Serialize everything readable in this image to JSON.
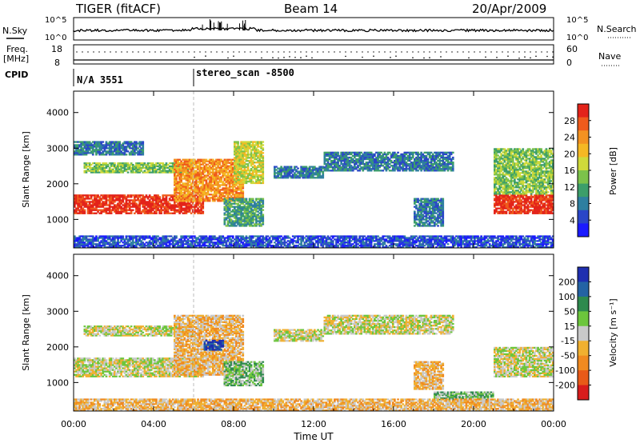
{
  "header": {
    "title": "TIGER (fitACF)",
    "beam": "Beam 14",
    "date": "20/Apr/2009"
  },
  "top_panels": {
    "nsky_label": "N.Sky",
    "nsearch_label": "N.Search",
    "noise_ticks": [
      "10^5",
      "10^0"
    ],
    "noise_ticks_right": [
      "10^5",
      "10^0"
    ],
    "freq_label": "Freq.",
    "freq_unit": "[MHz]",
    "freq_ticks": [
      "18",
      "8"
    ],
    "nave_label": "Nave",
    "nave_ticks": [
      "60",
      "0"
    ],
    "cpid_label": "CPID",
    "cpid_values": [
      {
        "label": "N/A 3551",
        "start": "00:00"
      },
      {
        "label": "stereo_scan -8500",
        "start": "06:00"
      }
    ]
  },
  "chart_data": [
    {
      "type": "heatmap",
      "name": "power-panel",
      "xlabel": "",
      "ylabel": "Slant Range [km]",
      "x_ticks": [
        "00:00",
        "04:00",
        "08:00",
        "12:00",
        "16:00",
        "20:00",
        "00:00"
      ],
      "y_ticks": [
        1000,
        2000,
        3000,
        4000
      ],
      "ylim": [
        200,
        4600
      ],
      "xlim_hours": [
        0,
        24
      ],
      "colorbar": {
        "label": "Power [dB]",
        "ticks": [
          4,
          8,
          12,
          16,
          20,
          24,
          28
        ],
        "colors": [
          "#1a1aff",
          "#2a46c8",
          "#2e7fa0",
          "#3c9e6a",
          "#7cc24a",
          "#cfd93a",
          "#f5b823",
          "#f39221",
          "#ef5b1c",
          "#e3231a"
        ]
      },
      "regions": [
        {
          "t0": 0.0,
          "t1": 6.5,
          "r0": 1150,
          "r1": 1700,
          "level": 9
        },
        {
          "t0": 0.5,
          "t1": 6.0,
          "r0": 2300,
          "r1": 2600,
          "level": 4
        },
        {
          "t0": 0.0,
          "t1": 3.5,
          "r0": 2800,
          "r1": 3200,
          "level": 2
        },
        {
          "t0": 5.0,
          "t1": 8.5,
          "r0": 1500,
          "r1": 2700,
          "level": 7
        },
        {
          "t0": 7.5,
          "t1": 9.5,
          "r0": 800,
          "r1": 1600,
          "level": 3
        },
        {
          "t0": 8.0,
          "t1": 9.5,
          "r0": 2000,
          "r1": 3200,
          "level": 5
        },
        {
          "t0": 10.0,
          "t1": 12.5,
          "r0": 2150,
          "r1": 2500,
          "level": 2
        },
        {
          "t0": 12.5,
          "t1": 19.0,
          "r0": 2350,
          "r1": 2900,
          "level": 2
        },
        {
          "t0": 17.0,
          "t1": 18.5,
          "r0": 800,
          "r1": 1600,
          "level": 2
        },
        {
          "t0": 21.0,
          "t1": 24.0,
          "r0": 1150,
          "r1": 1700,
          "level": 9
        },
        {
          "t0": 21.0,
          "t1": 24.0,
          "r0": 1700,
          "r1": 3000,
          "level": 4
        },
        {
          "t0": 0.0,
          "t1": 24.0,
          "r0": 200,
          "r1": 550,
          "level": 1
        }
      ]
    },
    {
      "type": "heatmap",
      "name": "velocity-panel",
      "xlabel": "Time UT",
      "ylabel": "Slant Range [km]",
      "x_ticks": [
        "00:00",
        "04:00",
        "08:00",
        "12:00",
        "16:00",
        "20:00",
        "00:00"
      ],
      "y_ticks": [
        1000,
        2000,
        3000,
        4000
      ],
      "ylim": [
        200,
        4600
      ],
      "xlim_hours": [
        0,
        24
      ],
      "colorbar": {
        "label": "Velocity [m s⁻¹]",
        "ticks": [
          200,
          100,
          50,
          15,
          -15,
          -50,
          -100,
          -200
        ],
        "colors": [
          "#1f2fb0",
          "#2463a4",
          "#2e8a4e",
          "#6cc63c",
          "#c9c9c9",
          "#f0b030",
          "#f08a20",
          "#e85a18",
          "#d81c1c"
        ]
      },
      "regions": [
        {
          "t0": 0.0,
          "t1": 6.5,
          "r0": 1150,
          "r1": 1700,
          "level": 4
        },
        {
          "t0": 0.5,
          "t1": 6.0,
          "r0": 2300,
          "r1": 2600,
          "level": 4
        },
        {
          "t0": 5.0,
          "t1": 8.5,
          "r0": 1200,
          "r1": 2900,
          "level": 5
        },
        {
          "t0": 6.5,
          "t1": 7.5,
          "r0": 1900,
          "r1": 2200,
          "level": 0
        },
        {
          "t0": 7.5,
          "t1": 9.5,
          "r0": 900,
          "r1": 1600,
          "level": 3
        },
        {
          "t0": 10.0,
          "t1": 12.5,
          "r0": 2150,
          "r1": 2500,
          "level": 4
        },
        {
          "t0": 12.5,
          "t1": 19.0,
          "r0": 2350,
          "r1": 2900,
          "level": 4
        },
        {
          "t0": 17.0,
          "t1": 18.5,
          "r0": 800,
          "r1": 1600,
          "level": 5
        },
        {
          "t0": 21.0,
          "t1": 24.0,
          "r0": 1150,
          "r1": 2000,
          "level": 4
        },
        {
          "t0": 18.0,
          "t1": 21.0,
          "r0": 500,
          "r1": 750,
          "level": 3
        },
        {
          "t0": 0.0,
          "t1": 24.0,
          "r0": 200,
          "r1": 550,
          "level": 5
        }
      ]
    }
  ]
}
